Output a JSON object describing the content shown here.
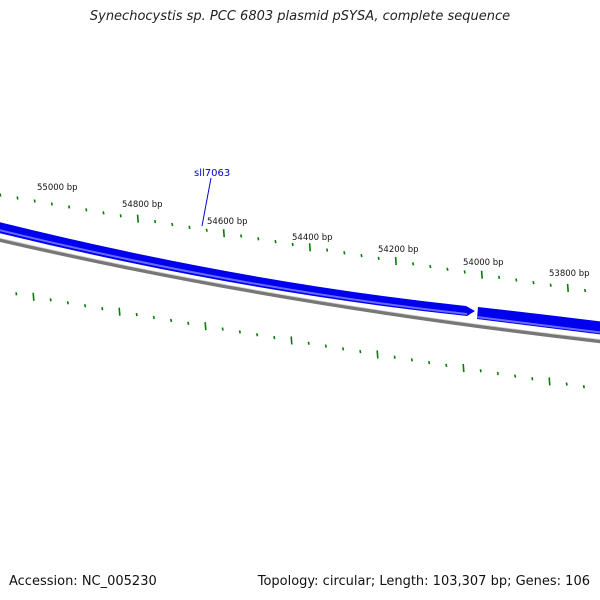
{
  "title": "Synechocystis sp. PCC 6803 plasmid pSYSA, complete sequence",
  "accession": "Accession: NC_005230",
  "summary": "Topology: circular; Length: 103,307 bp; Genes: 106",
  "gene_label": "sll7063",
  "tick_labels": [
    "55000 bp",
    "54800 bp",
    "54600 bp",
    "54400 bp",
    "54200 bp",
    "54000 bp",
    "53800 bp"
  ],
  "colors": {
    "gene_strand": "#0000ee",
    "gene_highlight": "#6a6aff",
    "backbone": "#777777",
    "ticks": "#008000",
    "label": "#0000cc"
  }
}
